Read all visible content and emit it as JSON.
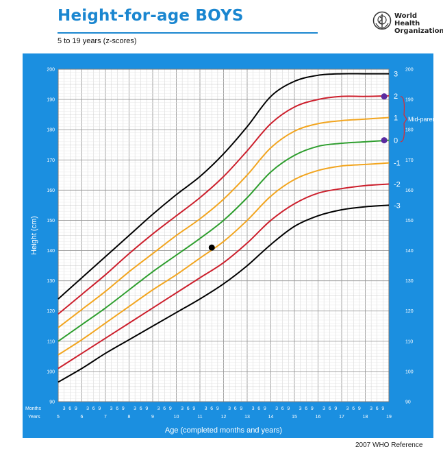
{
  "header": {
    "title": "Height-for-age BOYS",
    "subtitle": "5 to 19 years (z-scores)",
    "organization": "World Health\nOrganization",
    "footer": "2007 WHO Reference"
  },
  "colors": {
    "frame": "#1b8fe0",
    "grid_bg": "#ffffff",
    "z3": "#000000",
    "z2": "#cc1f2c",
    "z1": "#f2a51f",
    "z0": "#2e9e2e",
    "annotation": "#e0282f",
    "marker_purple": "#5a2aa0",
    "marker_black": "#000000"
  },
  "chart_data": {
    "type": "line",
    "xlabel": "Age (completed months and years)",
    "ylabel": "Height (cm)",
    "xlim": [
      5,
      19
    ],
    "ylim": [
      90,
      200
    ],
    "x_row_labels": {
      "months": "Months",
      "years": "Years"
    },
    "x_years": [
      "5",
      "6",
      "7",
      "8",
      "9",
      "10",
      "11",
      "12",
      "13",
      "14",
      "15",
      "16",
      "17",
      "18",
      "19"
    ],
    "x_month_ticks": [
      "3",
      "6",
      "9"
    ],
    "y_ticks": [
      "90",
      "100",
      "110",
      "120",
      "130",
      "140",
      "150",
      "160",
      "170",
      "180",
      "190",
      "200"
    ],
    "x": [
      5,
      6,
      7,
      8,
      9,
      10,
      11,
      12,
      13,
      14,
      15,
      16,
      17,
      18,
      19
    ],
    "series": [
      {
        "name": "3",
        "color_key": "z3",
        "values": [
          124,
          131,
          138,
          145,
          152,
          158.5,
          164.5,
          172,
          181,
          191,
          196,
          198,
          198.5,
          198.5,
          198.5
        ]
      },
      {
        "name": "2",
        "color_key": "z2",
        "values": [
          119,
          125.5,
          132,
          139,
          145.5,
          151.5,
          157.5,
          164.5,
          173,
          182,
          187.5,
          190,
          191,
          191,
          191.2
        ]
      },
      {
        "name": "1",
        "color_key": "z1",
        "values": [
          114.5,
          120.5,
          126.5,
          133,
          139,
          145,
          150.5,
          157,
          165,
          174,
          179.5,
          182,
          183,
          183.5,
          184
        ]
      },
      {
        "name": "0",
        "color_key": "z0",
        "values": [
          110,
          115.5,
          121,
          127,
          133,
          138.5,
          144,
          150,
          157.5,
          166,
          171.5,
          174.5,
          175.5,
          176,
          176.5
        ]
      },
      {
        "name": "-1",
        "color_key": "z1",
        "values": [
          105.5,
          110.5,
          116,
          121.5,
          127,
          132,
          137.5,
          143,
          150,
          158,
          163.5,
          166.5,
          168,
          168.5,
          169
        ]
      },
      {
        "name": "-2",
        "color_key": "z2",
        "values": [
          101,
          106,
          111,
          116,
          121,
          126,
          131,
          136,
          142.5,
          150,
          155.5,
          159,
          160.5,
          161.5,
          162
        ]
      },
      {
        "name": "-3",
        "color_key": "z3",
        "values": [
          96.5,
          101,
          106,
          110.5,
          115,
          119.5,
          124,
          129,
          135,
          142,
          148,
          151.5,
          153.5,
          154.5,
          155
        ]
      }
    ],
    "annotation": {
      "text": "Mid-parent",
      "bracket_from": 191,
      "bracket_to": 176
    },
    "markers": [
      {
        "x": 11.5,
        "y": 141,
        "color_key": "marker_black"
      },
      {
        "x": 18.8,
        "y": 191,
        "color_key": "marker_purple"
      },
      {
        "x": 18.8,
        "y": 176.5,
        "color_key": "marker_purple"
      }
    ]
  }
}
